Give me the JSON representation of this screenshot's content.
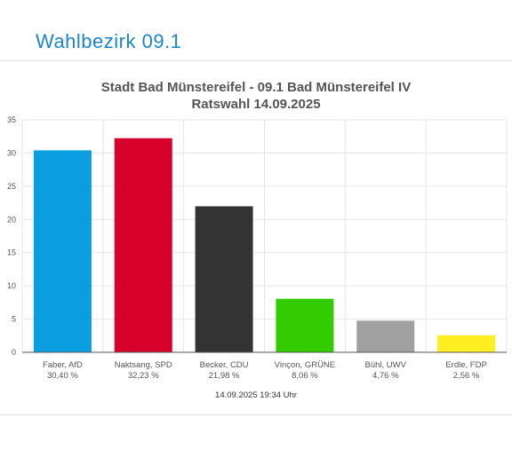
{
  "page": {
    "heading": "Wahlbezirk 09.1"
  },
  "chart_data": {
    "type": "bar",
    "title": "Stadt Bad Münstereifel - 09.1 Bad Münstereifel IV",
    "subtitle": "Ratswahl 14.09.2025",
    "categories": [
      "Faber, AfD",
      "Naktsang, SPD",
      "Becker, CDU",
      "Vinçon, GRÜNE",
      "Bühl, UWV",
      "Erdle, FDP"
    ],
    "values": [
      30.4,
      32.23,
      21.98,
      8.06,
      4.76,
      2.56
    ],
    "value_labels": [
      "30,40 %",
      "32,23 %",
      "21,98 %",
      "8,06 %",
      "4,76 %",
      "2,56 %"
    ],
    "colors": [
      "#0a9de0",
      "#d6002a",
      "#333333",
      "#33cc00",
      "#a0a0a0",
      "#ffee22"
    ],
    "ylim": [
      0,
      35
    ],
    "yticks": [
      0,
      5,
      10,
      15,
      20,
      25,
      30,
      35
    ],
    "grid": true,
    "xlabel": "",
    "ylabel": ""
  },
  "footer": {
    "timestamp": "14.09.2025 19:34 Uhr"
  }
}
